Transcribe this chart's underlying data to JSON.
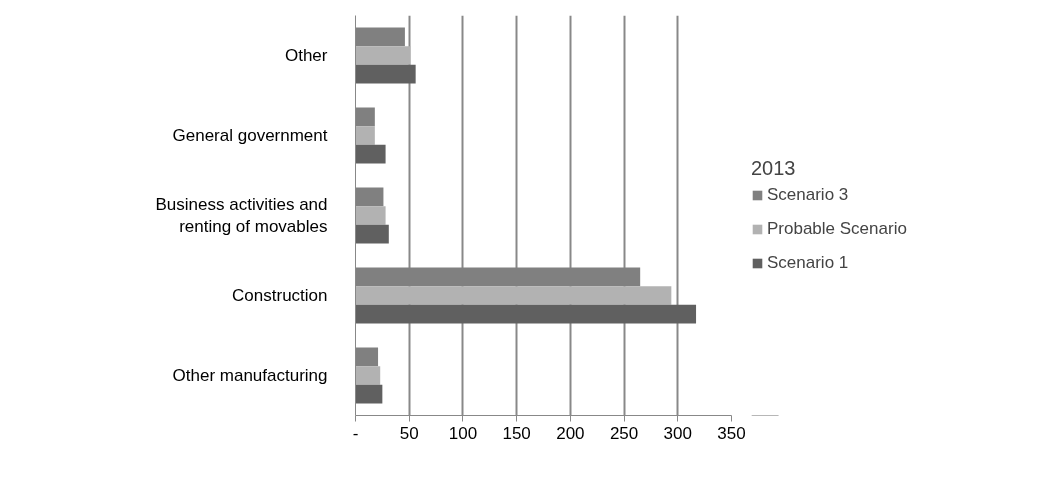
{
  "chart_data": {
    "type": "bar",
    "orientation": "horizontal",
    "categories": [
      "Other",
      "General government",
      "Business activities and renting of movables",
      "Construction",
      "Other manufacturing"
    ],
    "series": [
      {
        "name": "Scenario 3",
        "color": "#808080",
        "values": [
          46,
          18,
          26,
          265,
          21
        ]
      },
      {
        "name": "Probable Scenario",
        "color": "#b2b2b2",
        "values": [
          51,
          18,
          28,
          294,
          23
        ]
      },
      {
        "name": "Scenario 1",
        "color": "#606060",
        "values": [
          56,
          28,
          31,
          317,
          25
        ]
      }
    ],
    "legend_title": "2013",
    "xlim": [
      0,
      350
    ],
    "xticks": [
      {
        "value": 0,
        "label": "-"
      },
      50,
      100,
      150,
      200,
      250,
      300,
      350
    ],
    "grid": "x",
    "legend": "right"
  }
}
